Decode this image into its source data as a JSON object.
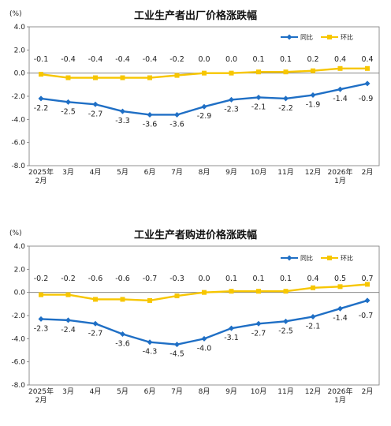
{
  "chart_data": [
    {
      "type": "line",
      "title": "工业生产者出厂价格涨跌幅",
      "ylabel": "(%)",
      "ylim": [
        -8.0,
        4.0
      ],
      "yticks": [
        "4.0",
        "2.0",
        "0.0",
        "-2.0",
        "-4.0",
        "-6.0",
        "-8.0"
      ],
      "categories": [
        "2025年\n2月",
        "3月",
        "4月",
        "5月",
        "6月",
        "7月",
        "8月",
        "9月",
        "10月",
        "11月",
        "12月",
        "2026年\n1月",
        "2月"
      ],
      "legend_position": "top-right",
      "series": [
        {
          "name": "同比",
          "color": "#1f6fc5",
          "marker": "diamond",
          "values": [
            -2.2,
            -2.5,
            -2.7,
            -3.3,
            -3.6,
            -3.6,
            -2.9,
            -2.3,
            -2.1,
            -2.2,
            -1.9,
            -1.4,
            -0.9
          ]
        },
        {
          "name": "环比",
          "color": "#f7c600",
          "marker": "square",
          "values": [
            -0.1,
            -0.4,
            -0.4,
            -0.4,
            -0.4,
            -0.2,
            0.0,
            0.0,
            0.1,
            0.1,
            0.2,
            0.4,
            0.4
          ]
        }
      ]
    },
    {
      "type": "line",
      "title": "工业生产者购进价格涨跌幅",
      "ylabel": "(%)",
      "ylim": [
        -8.0,
        4.0
      ],
      "yticks": [
        "4.0",
        "2.0",
        "0.0",
        "-2.0",
        "-4.0",
        "-6.0",
        "-8.0"
      ],
      "categories": [
        "2025年\n2月",
        "3月",
        "4月",
        "5月",
        "6月",
        "7月",
        "8月",
        "9月",
        "10月",
        "11月",
        "12月",
        "2026年\n1月",
        "2月"
      ],
      "legend_position": "top-right",
      "series": [
        {
          "name": "同比",
          "color": "#1f6fc5",
          "marker": "diamond",
          "values": [
            -2.3,
            -2.4,
            -2.7,
            -3.6,
            -4.3,
            -4.5,
            -4.0,
            -3.1,
            -2.7,
            -2.5,
            -2.1,
            -1.4,
            -0.7
          ]
        },
        {
          "name": "环比",
          "color": "#f7c600",
          "marker": "square",
          "values": [
            -0.2,
            -0.2,
            -0.6,
            -0.6,
            -0.7,
            -0.3,
            0.0,
            0.1,
            0.1,
            0.1,
            0.4,
            0.5,
            0.7
          ]
        }
      ]
    }
  ]
}
